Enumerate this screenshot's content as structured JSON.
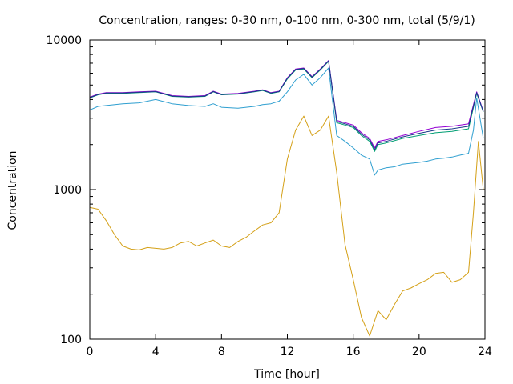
{
  "chart_data": {
    "type": "line",
    "title": "Concentration, ranges: 0-30 nm, 0-100 nm, 0-300 nm, total (5/9/1)",
    "xlabel": "Time [hour]",
    "ylabel": "Concentration",
    "xlim": [
      0,
      24
    ],
    "ylim": [
      100,
      10000
    ],
    "yscale": "log",
    "grid": false,
    "legend": "none",
    "x_ticks": [
      0,
      4,
      8,
      12,
      16,
      20,
      24
    ],
    "x_tick_labels": [
      "0",
      "4",
      "8",
      "12",
      "16",
      "20",
      "24"
    ],
    "y_ticks": [
      100,
      1000,
      10000
    ],
    "y_tick_labels": [
      "100",
      "1000",
      "10000"
    ],
    "series": [
      {
        "color": "#d4a017",
        "points": [
          [
            0,
            760
          ],
          [
            0.5,
            740
          ],
          [
            1,
            620
          ],
          [
            1.5,
            500
          ],
          [
            2,
            420
          ],
          [
            2.5,
            400
          ],
          [
            3,
            395
          ],
          [
            3.5,
            410
          ],
          [
            4,
            405
          ],
          [
            4.5,
            400
          ],
          [
            5,
            410
          ],
          [
            5.5,
            440
          ],
          [
            6,
            450
          ],
          [
            6.5,
            420
          ],
          [
            7,
            440
          ],
          [
            7.5,
            460
          ],
          [
            8,
            420
          ],
          [
            8.5,
            410
          ],
          [
            9,
            450
          ],
          [
            9.5,
            480
          ],
          [
            10,
            530
          ],
          [
            10.5,
            580
          ],
          [
            11,
            600
          ],
          [
            11.5,
            700
          ],
          [
            12,
            1600
          ],
          [
            12.5,
            2500
          ],
          [
            13,
            3100
          ],
          [
            13.5,
            2300
          ],
          [
            14,
            2500
          ],
          [
            14.5,
            3100
          ],
          [
            15,
            1300
          ],
          [
            15.5,
            430
          ],
          [
            16,
            250
          ],
          [
            16.5,
            140
          ],
          [
            17,
            105
          ],
          [
            17.5,
            155
          ],
          [
            18,
            135
          ],
          [
            18.5,
            170
          ],
          [
            19,
            210
          ],
          [
            19.5,
            220
          ],
          [
            20,
            235
          ],
          [
            20.5,
            250
          ],
          [
            21,
            275
          ],
          [
            21.5,
            280
          ],
          [
            22,
            240
          ],
          [
            22.5,
            250
          ],
          [
            23,
            280
          ],
          [
            23.3,
            700
          ],
          [
            23.6,
            2100
          ],
          [
            23.9,
            1000
          ]
        ]
      },
      {
        "color": "#2f9fd0",
        "points": [
          [
            0,
            3400
          ],
          [
            0.5,
            3600
          ],
          [
            1,
            3650
          ],
          [
            2,
            3750
          ],
          [
            3,
            3800
          ],
          [
            4,
            4000
          ],
          [
            5,
            3750
          ],
          [
            6,
            3650
          ],
          [
            7,
            3600
          ],
          [
            7.5,
            3750
          ],
          [
            8,
            3550
          ],
          [
            9,
            3500
          ],
          [
            10,
            3600
          ],
          [
            10.5,
            3700
          ],
          [
            11,
            3750
          ],
          [
            11.5,
            3900
          ],
          [
            12,
            4500
          ],
          [
            12.5,
            5400
          ],
          [
            13,
            5900
          ],
          [
            13.5,
            5000
          ],
          [
            14,
            5600
          ],
          [
            14.5,
            6500
          ],
          [
            15,
            2300
          ],
          [
            15.5,
            2100
          ],
          [
            16,
            1900
          ],
          [
            16.5,
            1700
          ],
          [
            17,
            1600
          ],
          [
            17.3,
            1250
          ],
          [
            17.5,
            1350
          ],
          [
            18,
            1400
          ],
          [
            18.5,
            1420
          ],
          [
            19,
            1480
          ],
          [
            19.5,
            1500
          ],
          [
            20,
            1520
          ],
          [
            20.5,
            1550
          ],
          [
            21,
            1600
          ],
          [
            21.5,
            1620
          ],
          [
            22,
            1650
          ],
          [
            22.5,
            1700
          ],
          [
            23,
            1750
          ],
          [
            23.3,
            2500
          ],
          [
            23.5,
            4100
          ],
          [
            23.9,
            2200
          ]
        ]
      },
      {
        "color": "#009e73",
        "points": [
          [
            0,
            4100
          ],
          [
            0.5,
            4300
          ],
          [
            1,
            4400
          ],
          [
            2,
            4400
          ],
          [
            3,
            4450
          ],
          [
            4,
            4500
          ],
          [
            5,
            4200
          ],
          [
            6,
            4150
          ],
          [
            7,
            4200
          ],
          [
            7.5,
            4500
          ],
          [
            8,
            4300
          ],
          [
            9,
            4350
          ],
          [
            10,
            4500
          ],
          [
            10.5,
            4600
          ],
          [
            11,
            4400
          ],
          [
            11.5,
            4500
          ],
          [
            12,
            5500
          ],
          [
            12.5,
            6300
          ],
          [
            13,
            6400
          ],
          [
            13.5,
            5600
          ],
          [
            14,
            6300
          ],
          [
            14.5,
            7200
          ],
          [
            15,
            2800
          ],
          [
            15.5,
            2700
          ],
          [
            16,
            2600
          ],
          [
            16.5,
            2300
          ],
          [
            17,
            2100
          ],
          [
            17.3,
            1800
          ],
          [
            17.5,
            2000
          ],
          [
            18,
            2050
          ],
          [
            19,
            2200
          ],
          [
            20,
            2300
          ],
          [
            21,
            2400
          ],
          [
            22,
            2450
          ],
          [
            23,
            2550
          ],
          [
            23.5,
            4400
          ],
          [
            23.9,
            3300
          ]
        ]
      },
      {
        "color": "#9400d3",
        "points": [
          [
            0,
            4150
          ],
          [
            0.5,
            4350
          ],
          [
            1,
            4450
          ],
          [
            2,
            4450
          ],
          [
            3,
            4500
          ],
          [
            4,
            4550
          ],
          [
            5,
            4250
          ],
          [
            6,
            4200
          ],
          [
            7,
            4250
          ],
          [
            7.5,
            4550
          ],
          [
            8,
            4350
          ],
          [
            9,
            4400
          ],
          [
            10,
            4550
          ],
          [
            10.5,
            4650
          ],
          [
            11,
            4450
          ],
          [
            11.5,
            4550
          ],
          [
            12,
            5600
          ],
          [
            12.5,
            6400
          ],
          [
            13,
            6500
          ],
          [
            13.5,
            5700
          ],
          [
            14,
            6400
          ],
          [
            14.5,
            7300
          ],
          [
            15,
            2900
          ],
          [
            15.5,
            2800
          ],
          [
            16,
            2700
          ],
          [
            16.5,
            2400
          ],
          [
            17,
            2200
          ],
          [
            17.3,
            1900
          ],
          [
            17.5,
            2100
          ],
          [
            18,
            2150
          ],
          [
            19,
            2300
          ],
          [
            20,
            2450
          ],
          [
            21,
            2600
          ],
          [
            22,
            2650
          ],
          [
            23,
            2750
          ],
          [
            23.5,
            4500
          ],
          [
            23.9,
            3350
          ]
        ]
      },
      {
        "color": "#1a3a8a",
        "points": [
          [
            0,
            4120
          ],
          [
            0.5,
            4320
          ],
          [
            1,
            4420
          ],
          [
            2,
            4420
          ],
          [
            3,
            4470
          ],
          [
            4,
            4520
          ],
          [
            5,
            4220
          ],
          [
            6,
            4170
          ],
          [
            7,
            4220
          ],
          [
            7.5,
            4520
          ],
          [
            8,
            4320
          ],
          [
            9,
            4370
          ],
          [
            10,
            4520
          ],
          [
            10.5,
            4620
          ],
          [
            11,
            4420
          ],
          [
            11.5,
            4520
          ],
          [
            12,
            5550
          ],
          [
            12.5,
            6350
          ],
          [
            13,
            6450
          ],
          [
            13.5,
            5650
          ],
          [
            14,
            6350
          ],
          [
            14.5,
            7250
          ],
          [
            15,
            2850
          ],
          [
            15.5,
            2750
          ],
          [
            16,
            2650
          ],
          [
            16.5,
            2350
          ],
          [
            17,
            2150
          ],
          [
            17.3,
            1850
          ],
          [
            17.5,
            2050
          ],
          [
            18,
            2100
          ],
          [
            19,
            2250
          ],
          [
            20,
            2380
          ],
          [
            21,
            2500
          ],
          [
            22,
            2550
          ],
          [
            23,
            2650
          ],
          [
            23.5,
            4450
          ],
          [
            23.9,
            3320
          ]
        ]
      }
    ]
  }
}
